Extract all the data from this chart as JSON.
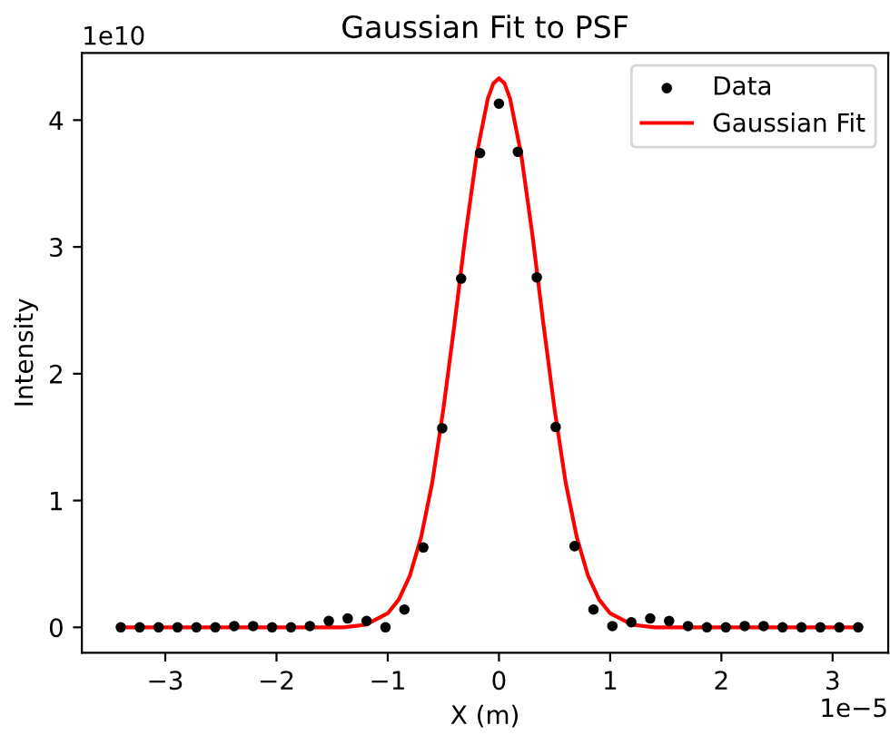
{
  "chart_data": {
    "type": "scatter",
    "title": "Gaussian Fit to PSF",
    "xlabel": "X (m)",
    "ylabel": "Intensity",
    "series": [
      {
        "name": "Data",
        "type": "scatter",
        "color": "#000000",
        "marker": "circle",
        "x": [
          -3.4,
          -3.23,
          -3.06,
          -2.89,
          -2.72,
          -2.55,
          -2.38,
          -2.21,
          -2.04,
          -1.87,
          -1.7,
          -1.53,
          -1.36,
          -1.19,
          -1.02,
          -0.85,
          -0.68,
          -0.51,
          -0.34,
          -0.17,
          0,
          0.17,
          0.34,
          0.51,
          0.68,
          0.85,
          1.02,
          1.19,
          1.36,
          1.53,
          1.7,
          1.87,
          2.04,
          2.21,
          2.38,
          2.55,
          2.72,
          2.89,
          3.06,
          3.23
        ],
        "values": [
          0,
          0,
          0,
          0,
          0,
          0,
          0.01,
          0.01,
          0,
          0,
          0.01,
          0.05,
          0.07,
          0.05,
          0,
          0.14,
          0.63,
          1.57,
          2.75,
          3.74,
          4.13,
          3.75,
          2.76,
          1.58,
          0.64,
          0.14,
          0.01,
          0.04,
          0.07,
          0.05,
          0.01,
          0,
          0,
          0.01,
          0.01,
          0,
          0,
          0,
          0,
          0
        ]
      },
      {
        "name": "Gaussian Fit",
        "type": "line",
        "color": "#ff0000",
        "marker": "none",
        "line_style": "solid",
        "x": [
          -3.4,
          -1.6,
          -1.4,
          -1.2,
          -1.0,
          -0.9,
          -0.8,
          -0.7,
          -0.6,
          -0.5,
          -0.4,
          -0.3,
          -0.2,
          -0.1,
          -0.05,
          0,
          0.05,
          0.1,
          0.2,
          0.3,
          0.4,
          0.5,
          0.6,
          0.7,
          0.8,
          0.9,
          1.0,
          1.2,
          1.4,
          1.6,
          3.23
        ],
        "values": [
          0,
          0,
          0,
          0.02,
          0.11,
          0.22,
          0.41,
          0.71,
          1.14,
          1.72,
          2.39,
          3.1,
          3.73,
          4.17,
          4.29,
          4.33,
          4.29,
          4.17,
          3.73,
          3.1,
          2.39,
          1.72,
          1.14,
          0.71,
          0.41,
          0.22,
          0.11,
          0.02,
          0,
          0,
          0
        ]
      }
    ],
    "xlim": [
      -3.75,
      3.5
    ],
    "ylim": [
      -0.2,
      4.53
    ],
    "xticks": [
      -3,
      -2,
      -1,
      0,
      1,
      2,
      3
    ],
    "yticks": [
      0,
      1,
      2,
      3,
      4
    ],
    "annotations": [
      "1e−5",
      "1e10"
    ],
    "legend": "top right",
    "grid": false
  }
}
